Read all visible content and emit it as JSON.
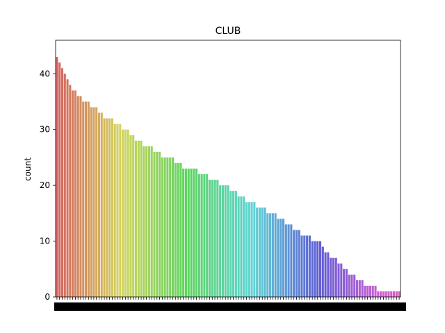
{
  "chart_data": {
    "type": "bar",
    "title": "CLUB",
    "xlabel": "",
    "ylabel": "count",
    "ylim": [
      0,
      46
    ],
    "yticks": [
      0,
      10,
      20,
      30,
      40
    ],
    "grid": false,
    "legend": "none",
    "values": [
      43,
      42,
      41,
      40,
      39,
      38,
      37,
      37,
      36,
      36,
      35,
      35,
      35,
      34,
      34,
      34,
      33,
      33,
      32,
      32,
      32,
      32,
      31,
      31,
      31,
      30,
      30,
      30,
      29,
      29,
      28,
      28,
      28,
      27,
      27,
      27,
      27,
      26,
      26,
      26,
      25,
      25,
      25,
      25,
      25,
      24,
      24,
      24,
      23,
      23,
      23,
      23,
      23,
      23,
      22,
      22,
      22,
      22,
      21,
      21,
      21,
      21,
      20,
      20,
      20,
      20,
      19,
      19,
      19,
      18,
      18,
      18,
      17,
      17,
      17,
      17,
      16,
      16,
      16,
      16,
      15,
      15,
      15,
      15,
      14,
      14,
      14,
      13,
      13,
      13,
      12,
      12,
      12,
      11,
      11,
      11,
      11,
      10,
      10,
      10,
      10,
      9,
      8,
      8,
      7,
      7,
      7,
      6,
      6,
      5,
      5,
      4,
      4,
      4,
      3,
      3,
      3,
      2,
      2,
      2,
      2,
      2,
      1,
      1,
      1,
      1,
      1,
      1,
      1,
      1,
      1
    ],
    "categories_note": "x tick labels are illegible (overlapping)"
  }
}
